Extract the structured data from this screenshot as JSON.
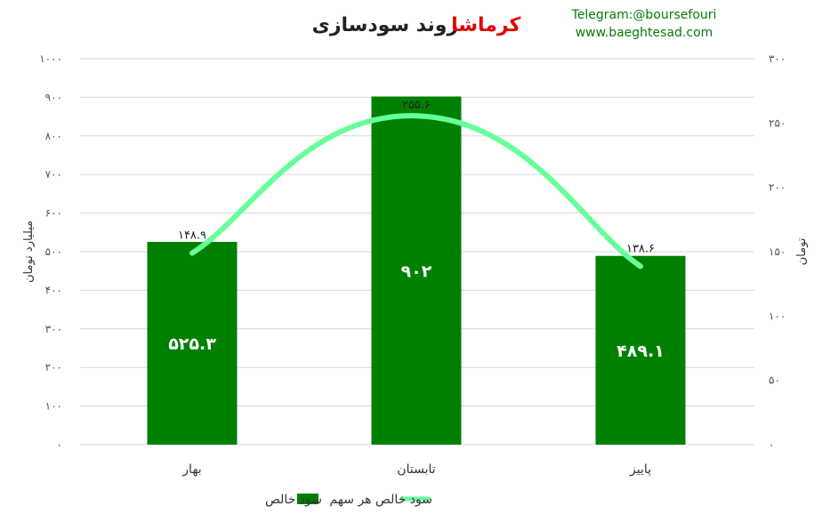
{
  "chart_data": {
    "type": "bar",
    "title_part1": "روند سودسازی",
    "title_part2": "کرماشا",
    "categories": [
      "بهار",
      "تابستان",
      "پاییز"
    ],
    "series": [
      {
        "name": "سود خالص",
        "type": "bar",
        "axis": "left",
        "values": [
          525.3,
          902,
          489.1
        ],
        "labels": [
          "۵۲۵.۳",
          "۹۰۲",
          "۴۸۹.۱"
        ],
        "color": "#008000"
      },
      {
        "name": "سود خالص هر سهم",
        "type": "line",
        "axis": "right",
        "values": [
          148.9,
          255.6,
          138.6
        ],
        "labels": [
          "۱۴۸.۹",
          "۲۵۵.۶",
          "۱۳۸.۶"
        ],
        "color": "#66ff99"
      }
    ],
    "y_left": {
      "label": "میلیارد تومان",
      "range": [
        0,
        1000
      ],
      "ticks": [
        0,
        100,
        200,
        300,
        400,
        500,
        600,
        700,
        800,
        900,
        1000
      ],
      "tick_labels": [
        "۰",
        "۱۰۰",
        "۲۰۰",
        "۳۰۰",
        "۴۰۰",
        "۵۰۰",
        "۶۰۰",
        "۷۰۰",
        "۸۰۰",
        "۹۰۰",
        "۱۰۰۰"
      ]
    },
    "y_right": {
      "label": "تومان",
      "range": [
        0,
        300
      ],
      "ticks": [
        0,
        50,
        100,
        150,
        200,
        250,
        300
      ],
      "tick_labels": [
        "۰",
        "۵۰",
        "۱۰۰",
        "۱۵۰",
        "۲۰۰",
        "۲۵۰",
        "۳۰۰"
      ]
    },
    "grid": true,
    "legend_position": "bottom"
  },
  "brand": {
    "telegram": "Telegram:@boursefouri",
    "website": "www.baeghtesad.com"
  },
  "colors": {
    "title_dark": "#222222",
    "title_accent": "#e00000",
    "grid": "#d9d9d9"
  }
}
